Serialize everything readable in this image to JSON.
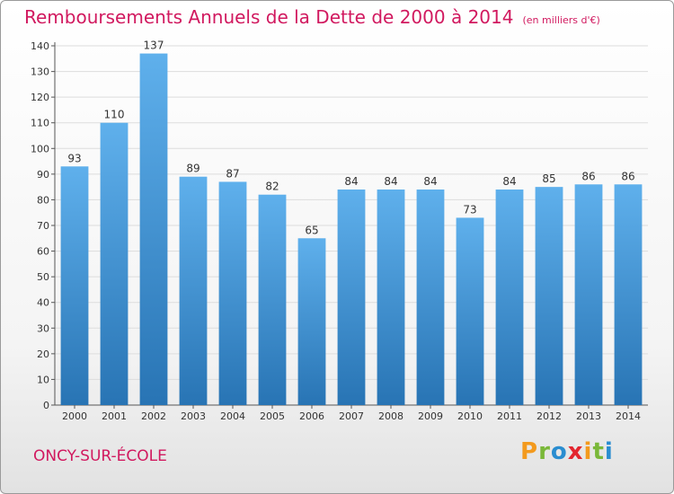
{
  "header": {
    "title": "Remboursements Annuels de la Dette de 2000 à 2014",
    "unit": "(en milliers d'€)"
  },
  "footer": {
    "town": "ONCY-SUR-ÉCOLE",
    "logo": "Proxiti"
  },
  "colors": {
    "title": "#d1195f",
    "bar_top": "#5fb0ec",
    "bar_bottom": "#2874b4",
    "grid": "#dddddd"
  },
  "chart_data": {
    "type": "bar",
    "title": "Remboursements Annuels de la Dette de 2000 à 2014",
    "ylabel": "en milliers d'€",
    "xlabel": "",
    "categories": [
      "2000",
      "2001",
      "2002",
      "2003",
      "2004",
      "2005",
      "2006",
      "2007",
      "2008",
      "2009",
      "2010",
      "2011",
      "2012",
      "2013",
      "2014"
    ],
    "values": [
      93,
      110,
      137,
      89,
      87,
      82,
      65,
      84,
      84,
      84,
      73,
      84,
      85,
      86,
      86
    ],
    "ylim": [
      0,
      140
    ],
    "yticks": [
      0,
      10,
      20,
      30,
      40,
      50,
      60,
      70,
      80,
      90,
      100,
      110,
      120,
      130,
      140
    ],
    "grid": true,
    "data_labels": true
  }
}
